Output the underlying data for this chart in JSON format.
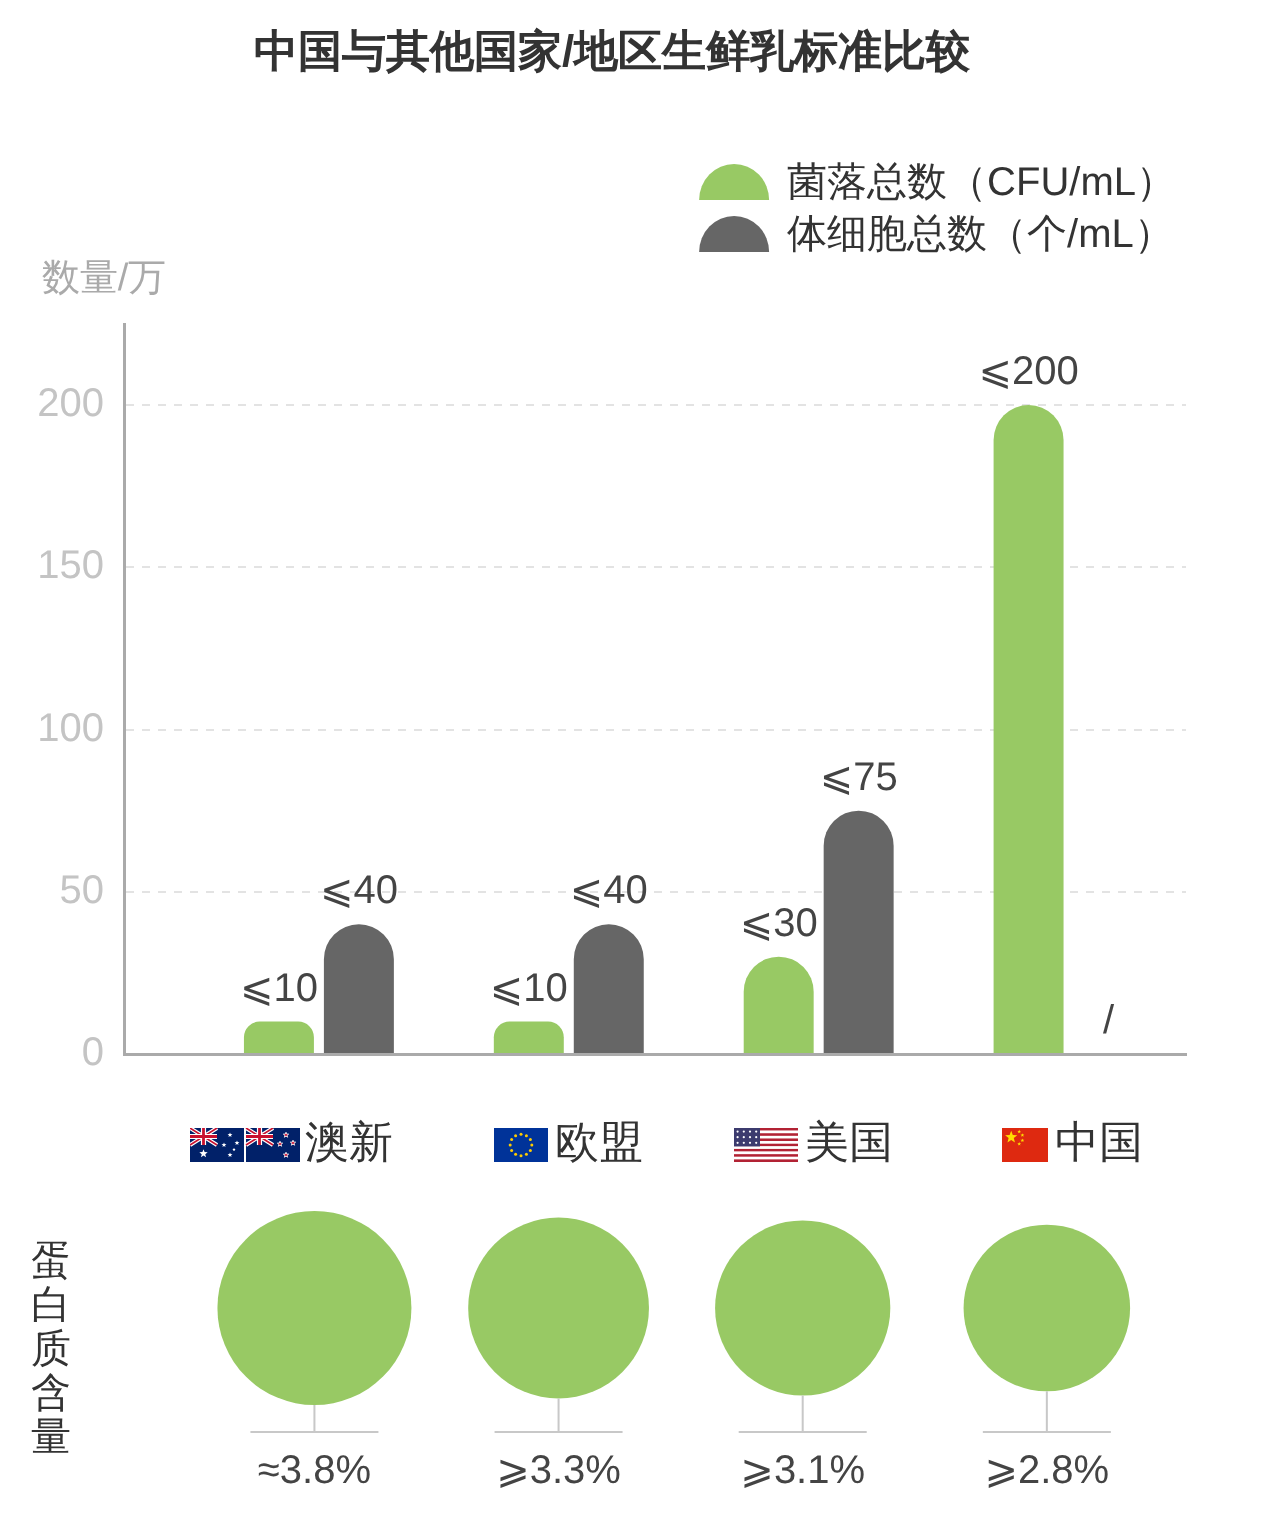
{
  "chart_data": [
    {
      "type": "bar",
      "title": "中国与其他国家/地区生鲜乳标准比较",
      "ylabel": "数量/万",
      "categories": [
        "澳新",
        "欧盟",
        "美国",
        "中国"
      ],
      "series": [
        {
          "name": "菌落总数（CFU/mL）",
          "color": "#98c964",
          "values": [
            10,
            10,
            30,
            200
          ],
          "value_labels": [
            "⩽10",
            "⩽10",
            "⩽30",
            "⩽200"
          ]
        },
        {
          "name": "体细胞总数（个/mL）",
          "color": "#666666",
          "values": [
            40,
            40,
            75,
            null
          ],
          "value_labels": [
            "⩽40",
            "⩽40",
            "⩽75",
            "/"
          ]
        }
      ],
      "ylim": [
        0,
        225
      ],
      "yticks": [
        0,
        50,
        100,
        150,
        200
      ],
      "grid": "y",
      "legend": "top right"
    },
    {
      "type": "other",
      "ylabel": "蛋白质含量",
      "categories": [
        null,
        null,
        null,
        null
      ],
      "values": [
        3.8,
        3.3,
        3.1,
        2.8
      ],
      "value_labels": [
        "≈3.8%",
        "⩾3.3%",
        "⩾3.1%",
        "⩾2.8%"
      ],
      "color": "#98c964"
    }
  ]
}
